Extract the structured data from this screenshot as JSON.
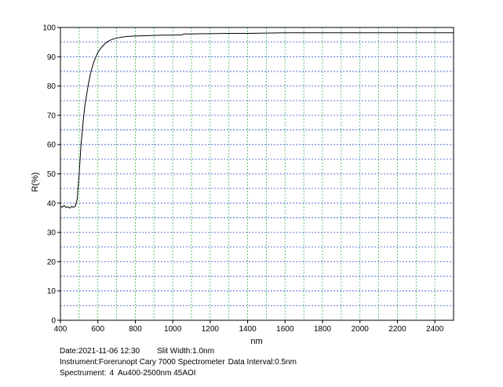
{
  "chart_data": {
    "type": "line",
    "title": "",
    "xlabel": "nm",
    "ylabel": "R(%)",
    "xlim": [
      400,
      2500
    ],
    "ylim": [
      0,
      100
    ],
    "x_ticks": [
      400,
      600,
      800,
      1000,
      1200,
      1400,
      1600,
      1800,
      2000,
      2200,
      2400
    ],
    "y_ticks": [
      0,
      10,
      20,
      30,
      40,
      50,
      60,
      70,
      80,
      90,
      100
    ],
    "grid": true,
    "series": [
      {
        "name": "",
        "color": "#000000",
        "x": [
          400,
          410,
          420,
          430,
          440,
          450,
          460,
          470,
          480,
          490,
          500,
          510,
          520,
          530,
          540,
          550,
          560,
          570,
          580,
          590,
          600,
          620,
          640,
          660,
          680,
          700,
          750,
          800,
          850,
          900,
          950,
          1000,
          1050,
          1060,
          1100,
          1200,
          1300,
          1400,
          1500,
          1600,
          1700,
          1800,
          1900,
          2000,
          2100,
          2200,
          2300,
          2400,
          2500
        ],
        "y": [
          39,
          38.6,
          39.2,
          38.5,
          38.8,
          38.3,
          38.9,
          38.6,
          39.0,
          41.5,
          50,
          60,
          67,
          73,
          77,
          81,
          84,
          86.5,
          88.5,
          90,
          91.5,
          93.3,
          94.6,
          95.5,
          96.0,
          96.4,
          96.9,
          97.1,
          97.2,
          97.3,
          97.4,
          97.4,
          97.5,
          97.8,
          97.8,
          97.9,
          98.0,
          98.0,
          98.1,
          98.2,
          98.2,
          98.2,
          98.2,
          98.2,
          98.2,
          98.2,
          98.2,
          98.2,
          98.2
        ]
      }
    ]
  },
  "info": {
    "date": "Date:2021-11-06 12:30",
    "slit_width": "Slit Width:1.0nm",
    "instrument": "Instrument:Forerunopt Cary 7000 Spectrometer",
    "data_interval": "Data Interval:0.5nm",
    "spectrument_label": "Spectrument:",
    "spectrument_value": "4  Au400-2500nm 45AOI"
  }
}
